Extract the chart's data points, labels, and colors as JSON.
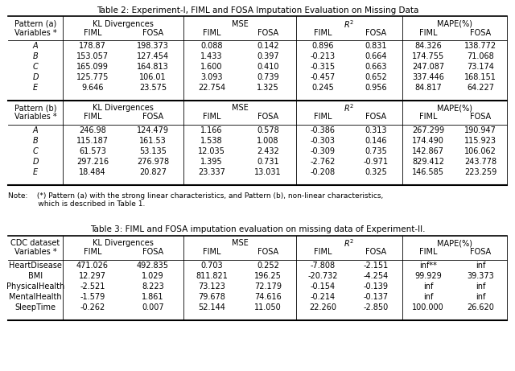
{
  "table2_title": "Table 2: Experiment-I, FIML and FOSA Imputation Evaluation on Missing Data",
  "table3_title": "Table 3: FIML and FOSA imputation evaluation on missing data of Experiment-II.",
  "note_line1": "Note:    (*) Pattern (a) with the strong linear characteristics, and Pattern (b), non-linear characteristics,",
  "note_line2": "             which is described in Table 1.",
  "group_headers": [
    "KL Divergences",
    "MSE",
    "R2",
    "MAPE(%)"
  ],
  "pattern_a_rows": [
    [
      "A",
      "178.87",
      "198.373",
      "0.088",
      "0.142",
      "0.896",
      "0.831",
      "84.326",
      "138.772"
    ],
    [
      "B",
      "153.057",
      "127.454",
      "1.433",
      "0.397",
      "-0.213",
      "0.664",
      "174.755",
      "71.068"
    ],
    [
      "C",
      "165.099",
      "164.813",
      "1.600",
      "0.410",
      "-0.315",
      "0.663",
      "247.087",
      "73.174"
    ],
    [
      "D",
      "125.775",
      "106.01",
      "3.093",
      "0.739",
      "-0.457",
      "0.652",
      "337.446",
      "168.151"
    ],
    [
      "E",
      "9.646",
      "23.575",
      "22.754",
      "1.325",
      "0.245",
      "0.956",
      "84.817",
      "64.227"
    ]
  ],
  "pattern_b_rows": [
    [
      "A",
      "246.98",
      "124.479",
      "1.166",
      "0.578",
      "-0.386",
      "0.313",
      "267.299",
      "190.947"
    ],
    [
      "B",
      "115.187",
      "161.53",
      "1.538",
      "1.008",
      "-0.303",
      "0.146",
      "174.490",
      "115.923"
    ],
    [
      "C",
      "61.573",
      "53.135",
      "12.035",
      "2.432",
      "-0.309",
      "0.735",
      "142.867",
      "106.062"
    ],
    [
      "D",
      "297.216",
      "276.978",
      "1.395",
      "0.731",
      "-2.762",
      "-0.971",
      "829.412",
      "243.778"
    ],
    [
      "E",
      "18.484",
      "20.827",
      "23.337",
      "13.031",
      "-0.208",
      "0.325",
      "146.585",
      "223.259"
    ]
  ],
  "cdc_rows": [
    [
      "HeartDisease",
      "471.026",
      "492.835",
      "0.703",
      "0.252",
      "-7.808",
      "-2.151",
      "inf**",
      "inf"
    ],
    [
      "BMI",
      "12.297",
      "1.029",
      "811.821",
      "196.25",
      "-20.732",
      "-4.254",
      "99.929",
      "39.373"
    ],
    [
      "PhysicalHealth",
      "-2.521",
      "8.223",
      "73.123",
      "72.179",
      "-0.154",
      "-0.139",
      "inf",
      "inf"
    ],
    [
      "MentalHealth",
      "-1.579",
      "1.861",
      "79.678",
      "74.616",
      "-0.214",
      "-0.137",
      "inf",
      "inf"
    ],
    [
      "SleepTime",
      "-0.262",
      "0.007",
      "52.144",
      "11.050",
      "22.260",
      "-2.850",
      "100.000",
      "26.620"
    ]
  ],
  "bg_color": "#ffffff",
  "text_color": "#000000"
}
